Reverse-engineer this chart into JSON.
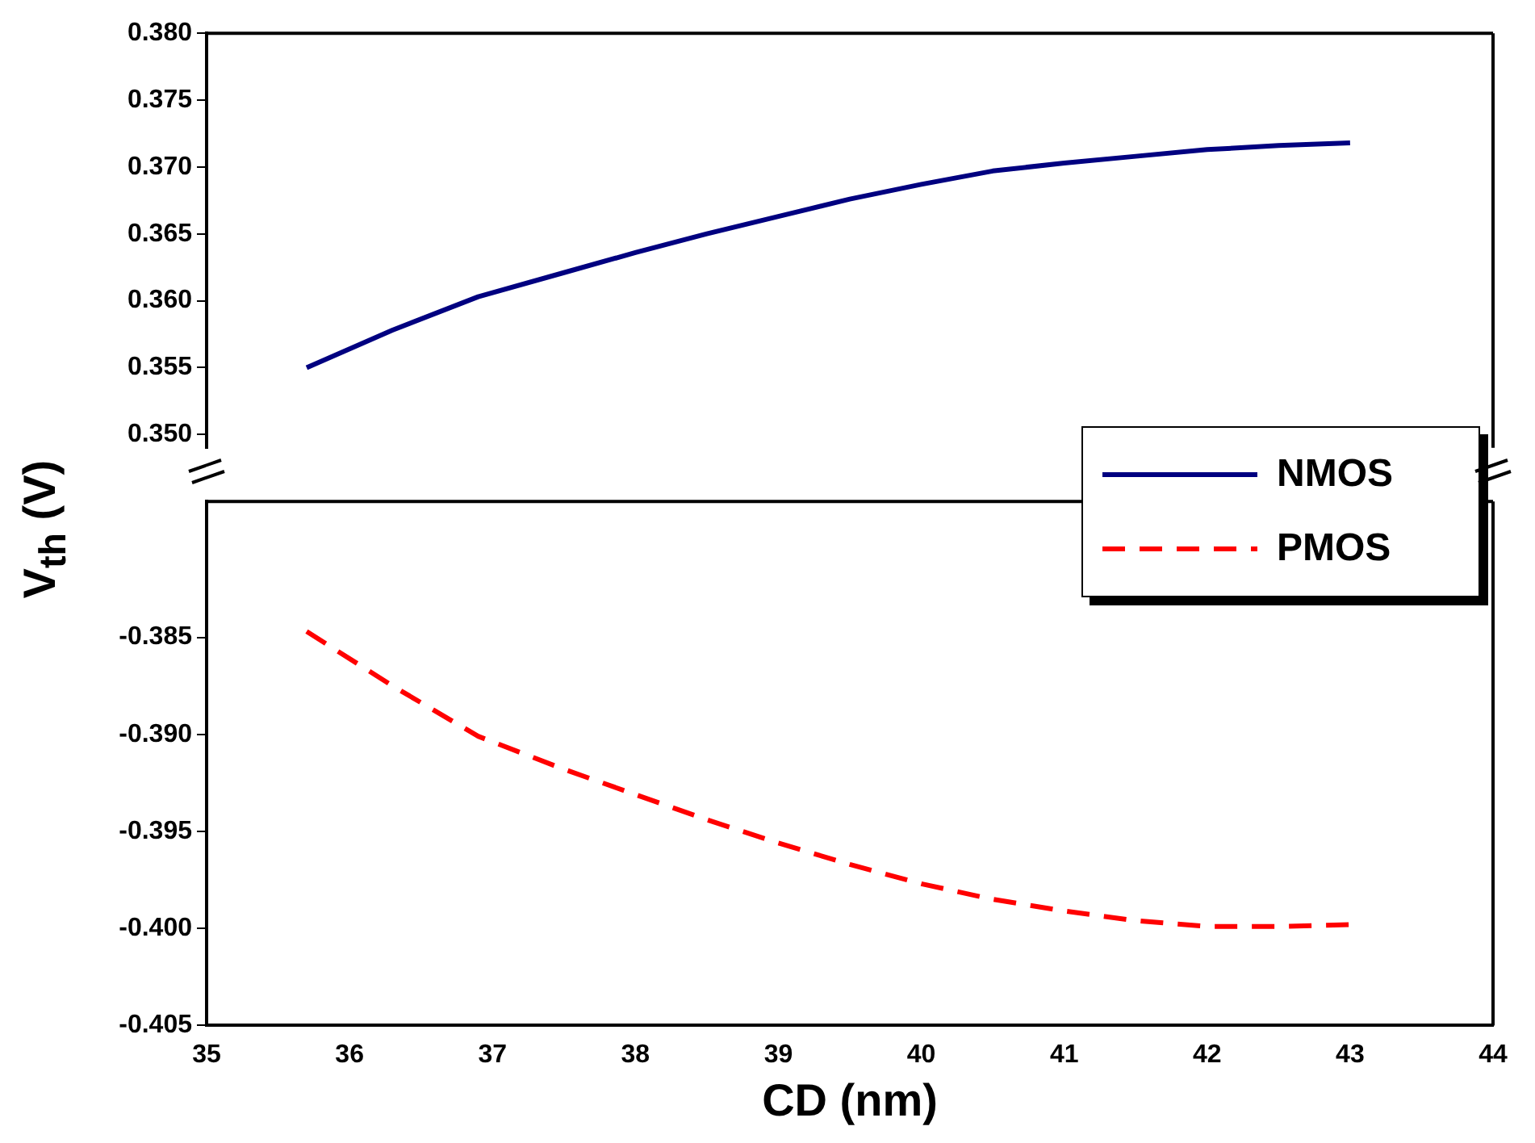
{
  "chart_data": [
    {
      "type": "line",
      "ylabel": "V$_{th}$ (V)",
      "series": [
        {
          "name": "NMOS",
          "color": "#000080",
          "line_style": "solid",
          "x": [
            35.7,
            36.3,
            36.9,
            37.5,
            38,
            38.5,
            39,
            39.5,
            40,
            40.5,
            41,
            41.5,
            42,
            42.5,
            43
          ],
          "values": [
            0.355,
            0.3578,
            0.3603,
            0.3621,
            0.3636,
            0.365,
            0.3663,
            0.3676,
            0.3687,
            0.3697,
            0.3703,
            0.3708,
            0.3713,
            0.3716,
            0.3718
          ]
        }
      ],
      "xlim": [
        35,
        44
      ],
      "xticks": [
        35,
        36,
        37,
        38,
        39,
        40,
        41,
        42,
        43,
        44
      ],
      "ylim": [
        0.349,
        0.38
      ],
      "yticks": [
        {
          "value": 0.35,
          "label": "0.350"
        },
        {
          "value": 0.355,
          "label": "0.355"
        },
        {
          "value": 0.36,
          "label": "0.360"
        },
        {
          "value": 0.365,
          "label": "0.365"
        },
        {
          "value": 0.37,
          "label": "0.370"
        },
        {
          "value": 0.375,
          "label": "0.375"
        },
        {
          "value": 0.38,
          "label": "0.380"
        }
      ],
      "tick_labels": "y",
      "legend": "bottom right"
    },
    {
      "type": "line",
      "xlabel": "CD (nm)",
      "series": [
        {
          "name": "PMOS",
          "color": "#ff0000",
          "line_style": "dashed",
          "x": [
            35.7,
            36.3,
            36.9,
            37.5,
            38,
            38.5,
            39,
            39.5,
            40,
            40.5,
            41,
            41.5,
            42,
            42.5,
            43
          ],
          "values": [
            -0.3847,
            -0.3875,
            -0.3901,
            -0.3918,
            -0.3931,
            -0.3944,
            -0.3956,
            -0.3967,
            -0.3977,
            -0.3985,
            -0.3991,
            -0.3996,
            -0.3999,
            -0.3999,
            -0.3998
          ]
        }
      ],
      "xlim": [
        35,
        44
      ],
      "xticks": [
        35,
        36,
        37,
        38,
        39,
        40,
        41,
        42,
        43,
        44
      ],
      "ylim": [
        -0.405,
        -0.378
      ],
      "yticks": [
        {
          "value": -0.405,
          "label": "-0.405"
        },
        {
          "value": -0.4,
          "label": "-0.400"
        },
        {
          "value": -0.395,
          "label": "-0.395"
        },
        {
          "value": -0.39,
          "label": "-0.390"
        },
        {
          "value": -0.385,
          "label": "-0.385"
        }
      ],
      "legend": "top right"
    }
  ]
}
